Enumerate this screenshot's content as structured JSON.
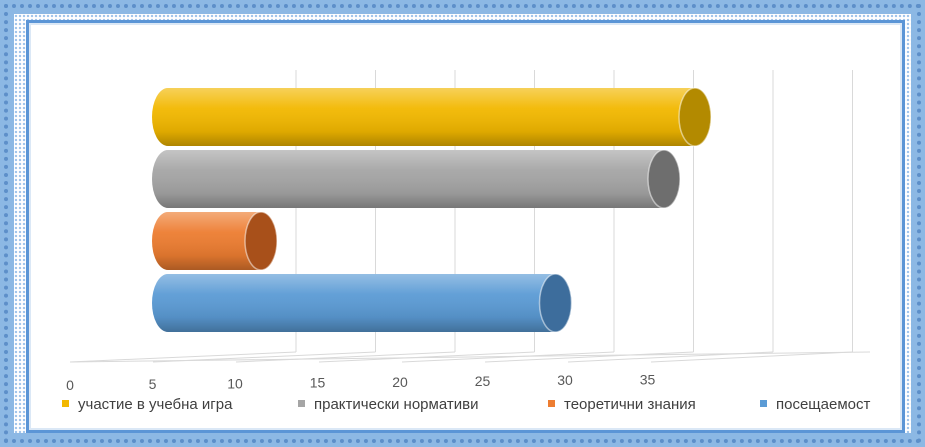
{
  "chart_data": {
    "type": "bar",
    "orientation": "horizontal",
    "style": "3d-cylinder",
    "categories": [
      "участие в учебна игра",
      "практически нормативи",
      "теоретични знания",
      "посещаемост"
    ],
    "values": [
      34,
      32,
      6,
      25
    ],
    "colors": [
      "#f2b800",
      "#a5a5a5",
      "#ed7d31",
      "#5b9bd5"
    ],
    "cap_colors": [
      "#b38a00",
      "#6e6e6e",
      "#a8501a",
      "#3d6d9c"
    ],
    "xlim": [
      0,
      35
    ],
    "x_ticks": [
      "0",
      "5",
      "10",
      "15",
      "20",
      "25",
      "30",
      "35"
    ],
    "title": "",
    "xlabel": "",
    "ylabel": "",
    "grid": true,
    "legend_position": "bottom"
  }
}
